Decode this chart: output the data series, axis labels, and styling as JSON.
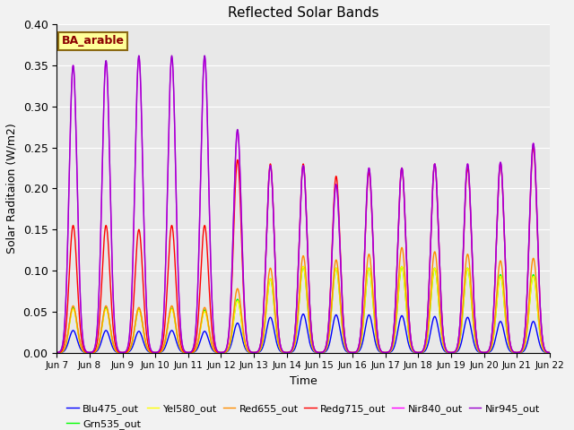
{
  "title": "Reflected Solar Bands",
  "xlabel": "Time",
  "ylabel": "Solar Raditaion (W/m2)",
  "xlim": [
    0,
    15
  ],
  "ylim": [
    0,
    0.4
  ],
  "yticks": [
    0.0,
    0.05,
    0.1,
    0.15,
    0.2,
    0.25,
    0.3,
    0.35,
    0.4
  ],
  "xtick_labels": [
    "Jun 7",
    "Jun 8",
    "Jun 9",
    "Jun 10",
    "Jun 11",
    "Jun 12",
    "Jun 13",
    "Jun 14",
    "Jun 15",
    "Jun 16",
    "Jun 17",
    "Jun 18",
    "Jun 19",
    "Jun 20",
    "Jun 21",
    "Jun 22"
  ],
  "legend_label": "BA_arable",
  "series_names": [
    "Blu475_out",
    "Grn535_out",
    "Yel580_out",
    "Red655_out",
    "Redg715_out",
    "Nir840_out",
    "Nir945_out"
  ],
  "series_colors": [
    "#0000ff",
    "#00ff00",
    "#ffff00",
    "#ff8c00",
    "#ff0000",
    "#ff00ff",
    "#9900cc"
  ],
  "background_color": "#e8e8e8",
  "fig_background": "#f2f2f2",
  "peak_positions": [
    0.5,
    1.5,
    2.5,
    3.5,
    4.5,
    5.5,
    6.5,
    7.5,
    8.5,
    9.5,
    10.5,
    11.5,
    12.5,
    13.5,
    14.5
  ],
  "sigma": 0.12,
  "peaks": {
    "Blu475_out": [
      0.027,
      0.027,
      0.026,
      0.027,
      0.026,
      0.036,
      0.043,
      0.047,
      0.046,
      0.046,
      0.045,
      0.044,
      0.043,
      0.038,
      0.038
    ],
    "Grn535_out": [
      0.055,
      0.055,
      0.053,
      0.054,
      0.052,
      0.065,
      0.09,
      0.105,
      0.103,
      0.103,
      0.105,
      0.103,
      0.103,
      0.095,
      0.095
    ],
    "Yel580_out": [
      0.053,
      0.053,
      0.052,
      0.053,
      0.05,
      0.063,
      0.09,
      0.105,
      0.103,
      0.103,
      0.105,
      0.103,
      0.103,
      0.093,
      0.093
    ],
    "Red655_out": [
      0.057,
      0.057,
      0.055,
      0.057,
      0.055,
      0.078,
      0.103,
      0.118,
      0.113,
      0.12,
      0.128,
      0.123,
      0.12,
      0.112,
      0.115
    ],
    "Redg715_out": [
      0.155,
      0.155,
      0.15,
      0.155,
      0.155,
      0.235,
      0.23,
      0.23,
      0.215,
      0.22,
      0.225,
      0.23,
      0.225,
      0.23,
      0.25
    ],
    "Nir840_out": [
      0.35,
      0.355,
      0.36,
      0.36,
      0.36,
      0.27,
      0.228,
      0.228,
      0.205,
      0.225,
      0.225,
      0.23,
      0.23,
      0.232,
      0.255
    ],
    "Nir945_out": [
      0.35,
      0.356,
      0.362,
      0.362,
      0.362,
      0.272,
      0.228,
      0.228,
      0.205,
      0.225,
      0.225,
      0.23,
      0.23,
      0.232,
      0.255
    ]
  }
}
